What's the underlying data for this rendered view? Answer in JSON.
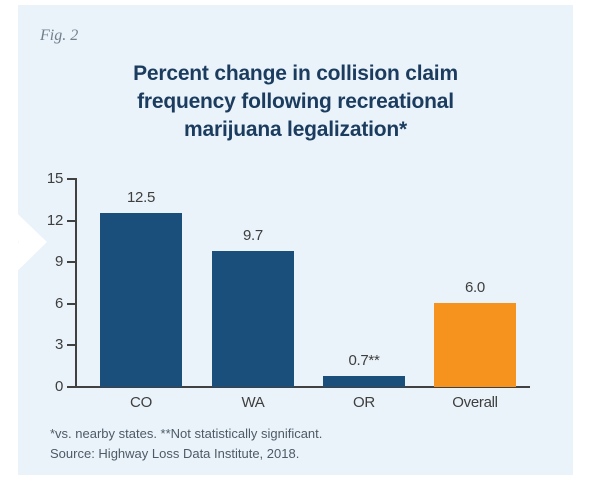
{
  "figure_label": "Fig. 2",
  "title": {
    "lines": [
      "Percent change in collision claim",
      "frequency following recreational",
      "marijuana legalization*"
    ]
  },
  "footnotes": {
    "line1": "*vs. nearby states. **Not statistically significant.",
    "line2": "Source: Highway Loss Data Institute, 2018."
  },
  "colors": {
    "panel_bg": "#eaf3fa",
    "bar_blue": "#1a4e7b",
    "bar_orange": "#f6921e",
    "title_text": "#1b3c5f",
    "axis_text": "#3e3e3e",
    "footnote_text": "#4d5b66",
    "chevron": "#ffffff"
  },
  "chart_data": {
    "type": "bar",
    "categories": [
      "CO",
      "WA",
      "OR",
      "Overall"
    ],
    "values": [
      12.5,
      9.7,
      0.7,
      6.0
    ],
    "value_labels": [
      "12.5",
      "9.7",
      "0.7**",
      "6.0"
    ],
    "bar_colors": [
      "#1a4e7b",
      "#1a4e7b",
      "#1a4e7b",
      "#f6921e"
    ],
    "title": "Percent change in collision claim frequency following recreational marijuana legalization*",
    "xlabel": "",
    "ylabel": "",
    "ylim": [
      0,
      15
    ],
    "yticks": [
      0,
      3,
      6,
      9,
      12,
      15
    ],
    "grid": false,
    "legend": false
  }
}
